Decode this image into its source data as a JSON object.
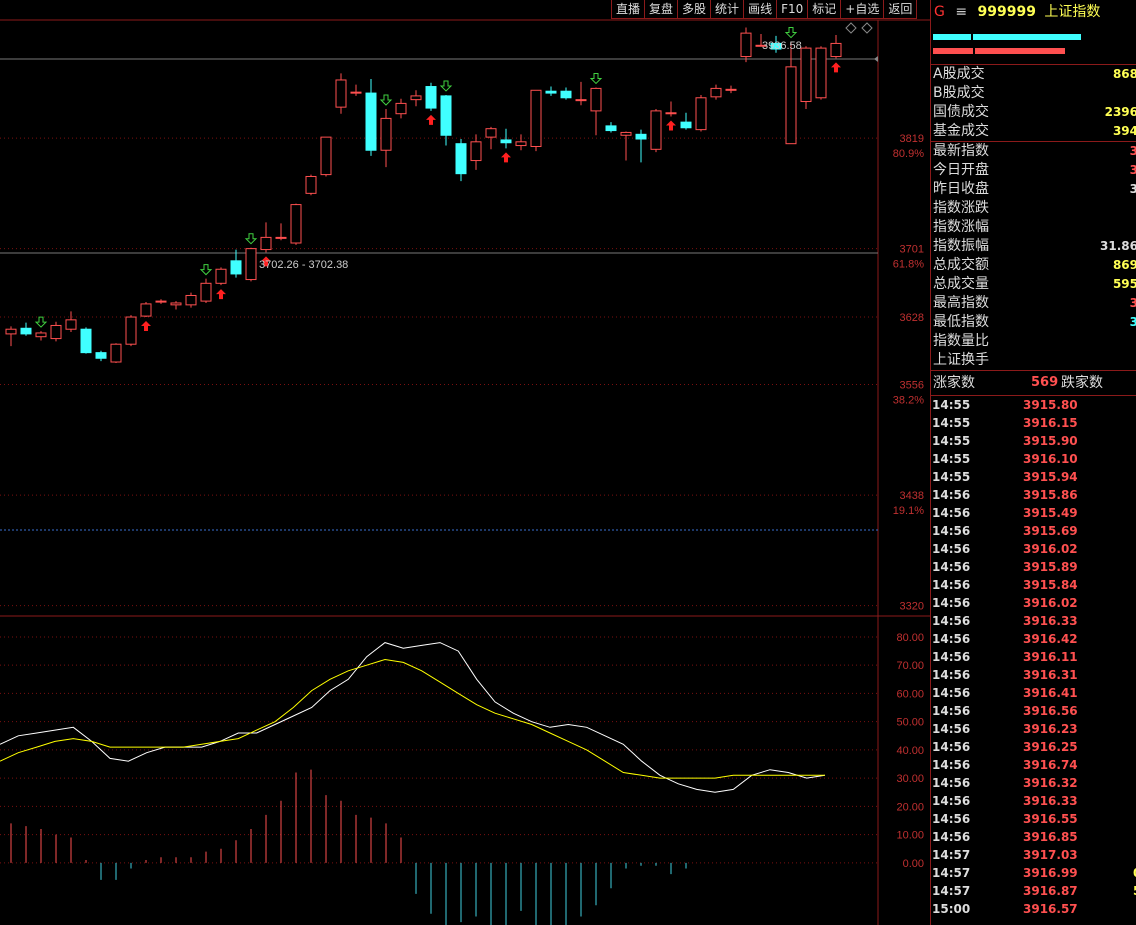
{
  "toolbar": [
    "直播",
    "复盘",
    "多股",
    "统计",
    "画线",
    "F10",
    "标记",
    "+自选",
    "返回"
  ],
  "quote": {
    "g": "G",
    "eq": "≡",
    "code": "999999",
    "name": "上证指数"
  },
  "stats": [
    {
      "label": "A股成交",
      "value": "868",
      "color": "#ffff54"
    },
    {
      "label": "B股成交",
      "value": "",
      "color": "#ffff54"
    },
    {
      "label": "国债成交",
      "value": "2396",
      "color": "#ffff54"
    },
    {
      "label": "基金成交",
      "value": "394",
      "color": "#ffff54"
    },
    {
      "label": "最新指数",
      "value": "3",
      "color": "#ff5050",
      "sep_before": true
    },
    {
      "label": "今日开盘",
      "value": "3",
      "color": "#ff5050"
    },
    {
      "label": "昨日收盘",
      "value": "3",
      "color": "#ddd"
    },
    {
      "label": "指数涨跌",
      "value": "",
      "color": "#ff5050"
    },
    {
      "label": "指数涨幅",
      "value": "",
      "color": "#ff5050"
    },
    {
      "label": "指数振幅",
      "value": "31.86",
      "color": "#ddd"
    },
    {
      "label": "总成交额",
      "value": "869",
      "color": "#ffff54"
    },
    {
      "label": "总成交量",
      "value": "595",
      "color": "#ffff54"
    },
    {
      "label": "最高指数",
      "value": "3",
      "color": "#ff5050"
    },
    {
      "label": "最低指数",
      "value": "3",
      "color": "#40ffff"
    },
    {
      "label": "指数量比",
      "value": "",
      "color": "#ddd"
    },
    {
      "label": "上证换手",
      "value": "",
      "color": "#ddd"
    }
  ],
  "counts": {
    "up_label": "涨家数",
    "up_value": "569",
    "down_label": "跌家数"
  },
  "ticks": [
    {
      "t": "14:55",
      "p": "3915.80",
      "x": ""
    },
    {
      "t": "14:55",
      "p": "3916.15",
      "x": ""
    },
    {
      "t": "14:55",
      "p": "3915.90",
      "x": ""
    },
    {
      "t": "14:55",
      "p": "3916.10",
      "x": ""
    },
    {
      "t": "14:55",
      "p": "3915.94",
      "x": ""
    },
    {
      "t": "14:56",
      "p": "3915.86",
      "x": ""
    },
    {
      "t": "14:56",
      "p": "3915.49",
      "x": ""
    },
    {
      "t": "14:56",
      "p": "3915.69",
      "x": ""
    },
    {
      "t": "14:56",
      "p": "3916.02",
      "x": ""
    },
    {
      "t": "14:56",
      "p": "3915.89",
      "x": ""
    },
    {
      "t": "14:56",
      "p": "3915.84",
      "x": ""
    },
    {
      "t": "14:56",
      "p": "3916.02",
      "x": ""
    },
    {
      "t": "14:56",
      "p": "3916.33",
      "x": ""
    },
    {
      "t": "14:56",
      "p": "3916.42",
      "x": ""
    },
    {
      "t": "14:56",
      "p": "3916.11",
      "x": ""
    },
    {
      "t": "14:56",
      "p": "3916.31",
      "x": ""
    },
    {
      "t": "14:56",
      "p": "3916.41",
      "x": ""
    },
    {
      "t": "14:56",
      "p": "3916.56",
      "x": ""
    },
    {
      "t": "14:56",
      "p": "3916.23",
      "x": ""
    },
    {
      "t": "14:56",
      "p": "3916.25",
      "x": ""
    },
    {
      "t": "14:56",
      "p": "3916.74",
      "x": ""
    },
    {
      "t": "14:56",
      "p": "3916.32",
      "x": ""
    },
    {
      "t": "14:56",
      "p": "3916.33",
      "x": ""
    },
    {
      "t": "14:56",
      "p": "3916.55",
      "x": ""
    },
    {
      "t": "14:56",
      "p": "3916.85",
      "x": ""
    },
    {
      "t": "14:57",
      "p": "3917.03",
      "x": ""
    },
    {
      "t": "14:57",
      "p": "3916.99",
      "x": "0"
    },
    {
      "t": "14:57",
      "p": "3916.87",
      "x": "5"
    },
    {
      "t": "15:00",
      "p": "3916.57",
      "x": ""
    }
  ],
  "chart_data": [
    {
      "type": "candlestick",
      "y_ticks": [
        "3819",
        "3701",
        "3628",
        "3556",
        "3438",
        "3320"
      ],
      "pct_ticks": [
        "80.9%",
        "61.8%",
        "38.2%",
        "19.1%"
      ],
      "ylim": [
        3310,
        3945
      ],
      "fib_levels": [
        3819,
        3701,
        3556,
        3438
      ],
      "high_label": "3936.58",
      "range_label": "3702.26 - 3702.38",
      "up_color": "#ff5050",
      "down_color": "#40ffff",
      "candles": [
        {
          "o": 3610,
          "h": 3618,
          "l": 3597,
          "c": 3615
        },
        {
          "o": 3616,
          "h": 3622,
          "l": 3608,
          "c": 3610
        },
        {
          "o": 3607,
          "h": 3613,
          "l": 3603,
          "c": 3611
        },
        {
          "o": 3605,
          "h": 3623,
          "l": 3602,
          "c": 3619
        },
        {
          "o": 3615,
          "h": 3634,
          "l": 3612,
          "c": 3625
        },
        {
          "o": 3615,
          "h": 3617,
          "l": 3589,
          "c": 3590
        },
        {
          "o": 3590,
          "h": 3592,
          "l": 3581,
          "c": 3584
        },
        {
          "o": 3580,
          "h": 3600,
          "l": 3579,
          "c": 3599
        },
        {
          "o": 3599,
          "h": 3630,
          "l": 3597,
          "c": 3628
        },
        {
          "o": 3629,
          "h": 3644,
          "l": 3628,
          "c": 3642
        },
        {
          "o": 3644,
          "h": 3647,
          "l": 3642,
          "c": 3645
        },
        {
          "o": 3641,
          "h": 3645,
          "l": 3636,
          "c": 3643
        },
        {
          "o": 3641,
          "h": 3654,
          "l": 3638,
          "c": 3651
        },
        {
          "o": 3645,
          "h": 3669,
          "l": 3643,
          "c": 3664
        },
        {
          "o": 3664,
          "h": 3681,
          "l": 3662,
          "c": 3679
        },
        {
          "o": 3688,
          "h": 3700,
          "l": 3670,
          "c": 3674
        },
        {
          "o": 3668,
          "h": 3702,
          "l": 3666,
          "c": 3701
        },
        {
          "o": 3700,
          "h": 3729,
          "l": 3697,
          "c": 3713
        },
        {
          "o": 3713,
          "h": 3728,
          "l": 3710,
          "c": 3713
        },
        {
          "o": 3707,
          "h": 3749,
          "l": 3705,
          "c": 3748
        },
        {
          "o": 3760,
          "h": 3780,
          "l": 3758,
          "c": 3778
        },
        {
          "o": 3780,
          "h": 3820,
          "l": 3778,
          "c": 3820
        },
        {
          "o": 3852,
          "h": 3888,
          "l": 3845,
          "c": 3881
        },
        {
          "o": 3868,
          "h": 3876,
          "l": 3864,
          "c": 3868
        },
        {
          "o": 3867,
          "h": 3882,
          "l": 3800,
          "c": 3806
        },
        {
          "o": 3806,
          "h": 3850,
          "l": 3788,
          "c": 3840
        },
        {
          "o": 3845,
          "h": 3861,
          "l": 3840,
          "c": 3856
        },
        {
          "o": 3860,
          "h": 3870,
          "l": 3853,
          "c": 3864
        },
        {
          "o": 3874,
          "h": 3878,
          "l": 3848,
          "c": 3851
        },
        {
          "o": 3864,
          "h": 3865,
          "l": 3811,
          "c": 3822
        },
        {
          "o": 3813,
          "h": 3818,
          "l": 3773,
          "c": 3781
        },
        {
          "o": 3795,
          "h": 3823,
          "l": 3785,
          "c": 3815
        },
        {
          "o": 3820,
          "h": 3831,
          "l": 3807,
          "c": 3829
        },
        {
          "o": 3817,
          "h": 3829,
          "l": 3808,
          "c": 3814
        },
        {
          "o": 3811,
          "h": 3823,
          "l": 3806,
          "c": 3815
        },
        {
          "o": 3810,
          "h": 3870,
          "l": 3805,
          "c": 3870
        },
        {
          "o": 3869,
          "h": 3874,
          "l": 3864,
          "c": 3867
        },
        {
          "o": 3869,
          "h": 3873,
          "l": 3860,
          "c": 3862
        },
        {
          "o": 3860,
          "h": 3879,
          "l": 3854,
          "c": 3860
        },
        {
          "o": 3848,
          "h": 3873,
          "l": 3822,
          "c": 3872
        },
        {
          "o": 3832,
          "h": 3836,
          "l": 3825,
          "c": 3827
        },
        {
          "o": 3822,
          "h": 3826,
          "l": 3795,
          "c": 3825
        },
        {
          "o": 3823,
          "h": 3828,
          "l": 3793,
          "c": 3818
        },
        {
          "o": 3807,
          "h": 3850,
          "l": 3804,
          "c": 3848
        },
        {
          "o": 3846,
          "h": 3858,
          "l": 3842,
          "c": 3846
        },
        {
          "o": 3836,
          "h": 3846,
          "l": 3828,
          "c": 3830
        },
        {
          "o": 3828,
          "h": 3865,
          "l": 3826,
          "c": 3862
        },
        {
          "o": 3863,
          "h": 3876,
          "l": 3860,
          "c": 3872
        },
        {
          "o": 3870,
          "h": 3875,
          "l": 3867,
          "c": 3871
        },
        {
          "o": 3906,
          "h": 3937,
          "l": 3900,
          "c": 3931
        },
        {
          "o": 3918,
          "h": 3930,
          "l": 3917,
          "c": 3918
        },
        {
          "o": 3920,
          "h": 3928,
          "l": 3910,
          "c": 3914
        },
        {
          "o": 3813,
          "h": 3922,
          "l": 3813,
          "c": 3895
        },
        {
          "o": 3858,
          "h": 3917,
          "l": 3850,
          "c": 3915
        },
        {
          "o": 3862,
          "h": 3917,
          "l": 3860,
          "c": 3915
        },
        {
          "o": 3906,
          "h": 3929,
          "l": 3904,
          "c": 3920
        }
      ],
      "markers_down": [
        2,
        13,
        16,
        25,
        29,
        39,
        52
      ],
      "markers_up": [
        9,
        14,
        17,
        28,
        33,
        44,
        55
      ]
    },
    {
      "type": "line",
      "y_ticks": [
        "80.00",
        "70.00",
        "60.00",
        "50.00",
        "40.00",
        "30.00",
        "20.00",
        "10.00",
        "0.00"
      ],
      "ylim": [
        -22,
        86
      ],
      "series": [
        {
          "color": "#ffffff",
          "values": [
            42,
            45,
            46,
            47,
            48,
            43,
            37,
            36,
            39,
            41,
            41,
            41,
            43,
            46,
            46,
            49,
            52,
            55,
            61,
            65,
            73,
            78,
            76,
            77,
            78,
            75,
            65,
            57,
            53,
            50,
            48,
            49,
            48,
            45,
            42,
            36,
            31,
            28,
            26,
            25,
            26,
            31,
            33,
            32,
            30,
            31
          ]
        },
        {
          "color": "#ffff00",
          "values": [
            36,
            39,
            41,
            43,
            44,
            43,
            41,
            41,
            41,
            41,
            41,
            42,
            43,
            44,
            47,
            50,
            55,
            61,
            65,
            68,
            70,
            72,
            71,
            68,
            64,
            60,
            56,
            53,
            51,
            49,
            46,
            43,
            40,
            36,
            32,
            31,
            30,
            30,
            30,
            30,
            31,
            31,
            31,
            31,
            31,
            31
          ]
        }
      ],
      "bars": [
        14,
        13,
        12,
        10,
        9,
        1,
        -6,
        -6,
        -2,
        1,
        2,
        2,
        2,
        4,
        5,
        8,
        12,
        17,
        22,
        32,
        33,
        24,
        22,
        17,
        16,
        14,
        9,
        -11,
        -18,
        -23,
        -21,
        -19,
        -22,
        -24,
        -17,
        -23,
        -25,
        -22,
        -19,
        -15,
        -9,
        -2,
        -1,
        -1,
        -4,
        -2
      ]
    }
  ]
}
